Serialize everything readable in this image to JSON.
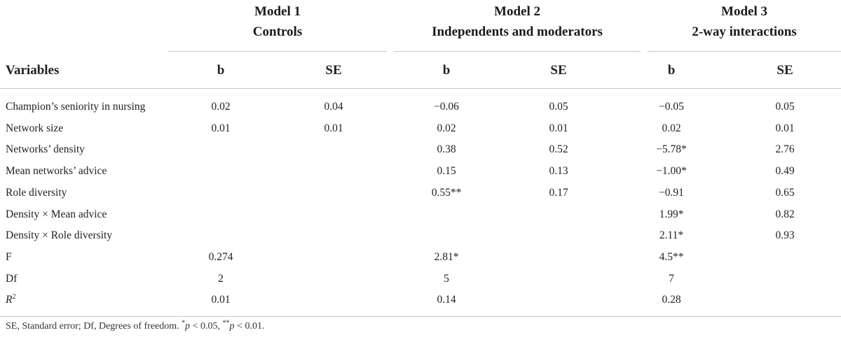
{
  "models": [
    {
      "title": "Model 1",
      "subtitle": "Controls"
    },
    {
      "title": "Model 2",
      "subtitle": "Independents and moderators"
    },
    {
      "title": "Model 3",
      "subtitle": "2-way interactions"
    }
  ],
  "columns": {
    "variables": "Variables",
    "b": "b",
    "se": "SE"
  },
  "rows": [
    {
      "label": "Champion’s seniority in nursing",
      "cells": [
        "0.02",
        "0.04",
        "−0.06",
        "0.05",
        "−0.05",
        "0.05"
      ]
    },
    {
      "label": "Network size",
      "cells": [
        "0.01",
        "0.01",
        "0.02",
        "0.01",
        "0.02",
        "0.01"
      ]
    },
    {
      "label": "Networks’ density",
      "cells": [
        "",
        "",
        "0.38",
        "0.52",
        "−5.78*",
        "2.76"
      ]
    },
    {
      "label": "Mean networks’ advice",
      "cells": [
        "",
        "",
        "0.15",
        "0.13",
        "−1.00*",
        "0.49"
      ]
    },
    {
      "label": "Role diversity",
      "cells": [
        "",
        "",
        "0.55**",
        "0.17",
        "−0.91",
        "0.65"
      ]
    },
    {
      "label": "Density × Mean advice",
      "cells": [
        "",
        "",
        "",
        "",
        "1.99*",
        "0.82"
      ]
    },
    {
      "label": "Density × Role diversity",
      "cells": [
        "",
        "",
        "",
        "",
        "2.11*",
        "0.93"
      ]
    }
  ],
  "stats": [
    {
      "label": "F",
      "values": [
        "0.274",
        "2.81*",
        "4.5**"
      ]
    },
    {
      "label": "Df",
      "values": [
        "2",
        "5",
        "7"
      ]
    },
    {
      "label_base": "R",
      "label_sup": "2",
      "values": [
        "0.01",
        "0.14",
        "0.28"
      ]
    }
  ],
  "footnote": {
    "prefix": "SE, Standard error; Df, Degrees of freedom. ",
    "s1": "*",
    "p1": "p",
    "t1": " < 0.05, ",
    "s2": "**",
    "p2": "p",
    "t2": " < 0.01."
  }
}
